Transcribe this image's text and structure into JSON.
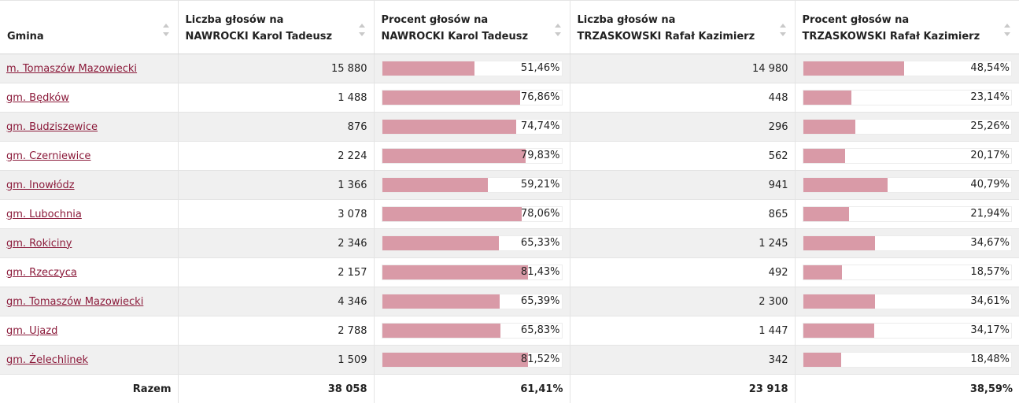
{
  "accent_color": "#8b1a3a",
  "bar_color": "#d99aa7",
  "columns": [
    {
      "lines": [
        "Gmina"
      ]
    },
    {
      "lines": [
        "Liczba głosów na",
        "NAWROCKI Karol Tadeusz"
      ]
    },
    {
      "lines": [
        "Procent głosów na",
        "NAWROCKI Karol Tadeusz"
      ]
    },
    {
      "lines": [
        "Liczba głosów na",
        "TRZASKOWSKI Rafał Kazimierz"
      ]
    },
    {
      "lines": [
        "Procent głosów na",
        "TRZASKOWSKI Rafał Kazimierz"
      ]
    }
  ],
  "rows": [
    {
      "gmina": "m. Tomaszów Mazowiecki",
      "n1": "15 880",
      "p1": "51,46%",
      "p1_value": 51.46,
      "n2": "14 980",
      "p2": "48,54%",
      "p2_value": 48.54
    },
    {
      "gmina": "gm. Będków",
      "n1": "1 488",
      "p1": "76,86%",
      "p1_value": 76.86,
      "n2": "448",
      "p2": "23,14%",
      "p2_value": 23.14
    },
    {
      "gmina": "gm. Budziszewice",
      "n1": "876",
      "p1": "74,74%",
      "p1_value": 74.74,
      "n2": "296",
      "p2": "25,26%",
      "p2_value": 25.26
    },
    {
      "gmina": "gm. Czerniewice",
      "n1": "2 224",
      "p1": "79,83%",
      "p1_value": 79.83,
      "n2": "562",
      "p2": "20,17%",
      "p2_value": 20.17
    },
    {
      "gmina": "gm. Inowłódz",
      "n1": "1 366",
      "p1": "59,21%",
      "p1_value": 59.21,
      "n2": "941",
      "p2": "40,79%",
      "p2_value": 40.79
    },
    {
      "gmina": "gm. Lubochnia",
      "n1": "3 078",
      "p1": "78,06%",
      "p1_value": 78.06,
      "n2": "865",
      "p2": "21,94%",
      "p2_value": 21.94
    },
    {
      "gmina": "gm. Rokiciny",
      "n1": "2 346",
      "p1": "65,33%",
      "p1_value": 65.33,
      "n2": "1 245",
      "p2": "34,67%",
      "p2_value": 34.67
    },
    {
      "gmina": "gm. Rzeczyca",
      "n1": "2 157",
      "p1": "81,43%",
      "p1_value": 81.43,
      "n2": "492",
      "p2": "18,57%",
      "p2_value": 18.57
    },
    {
      "gmina": "gm. Tomaszów Mazowiecki",
      "n1": "4 346",
      "p1": "65,39%",
      "p1_value": 65.39,
      "n2": "2 300",
      "p2": "34,61%",
      "p2_value": 34.61
    },
    {
      "gmina": "gm. Ujazd",
      "n1": "2 788",
      "p1": "65,83%",
      "p1_value": 65.83,
      "n2": "1 447",
      "p2": "34,17%",
      "p2_value": 34.17
    },
    {
      "gmina": "gm. Żelechlinek",
      "n1": "1 509",
      "p1": "81,52%",
      "p1_value": 81.52,
      "n2": "342",
      "p2": "18,48%",
      "p2_value": 18.48
    }
  ],
  "total": {
    "label": "Razem",
    "n1": "38 058",
    "p1": "61,41%",
    "n2": "23 918",
    "p2": "38,59%"
  }
}
